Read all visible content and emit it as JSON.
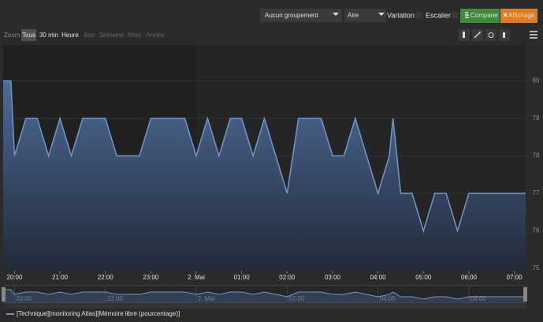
{
  "toolbar": {
    "grouping": "Aucun groupement",
    "chart_kind": "Aire",
    "variation": "Variation",
    "stairs": "Escalier",
    "compare": "Comparer",
    "display": "Affichage"
  },
  "zoom": {
    "label": "Zoom",
    "buttons": [
      "Tous",
      "30 min",
      "Heure",
      "Jour",
      "Semaine",
      "Mois",
      "Année"
    ]
  },
  "chart_data": {
    "type": "area",
    "x": [
      19.75,
      19.92,
      20.0,
      20.25,
      20.5,
      20.75,
      21.0,
      21.25,
      21.5,
      22.0,
      22.25,
      22.75,
      23.0,
      23.75,
      24.0,
      24.25,
      24.5,
      24.75,
      25.0,
      25.25,
      25.5,
      26.0,
      26.25,
      26.75,
      27.0,
      27.25,
      27.5,
      28.0,
      28.25,
      28.33,
      28.5,
      28.75,
      29.0,
      29.25,
      29.5,
      29.75,
      30.0,
      31.25
    ],
    "series": [
      {
        "name": "[Technique][monitoring Atlas][Mémoire libre (pourcentage)]",
        "color": "#7396c9",
        "values": [
          80,
          80,
          78,
          79,
          79,
          78,
          79,
          78,
          79,
          79,
          78,
          78,
          79,
          79,
          78,
          79,
          78,
          79,
          79,
          78,
          79,
          77,
          79,
          79,
          78,
          78,
          79,
          77,
          78,
          79,
          77,
          77,
          76,
          77,
          77,
          76,
          77,
          77
        ]
      }
    ],
    "xlim": [
      19.75,
      31.25
    ],
    "xticks": [
      {
        "value": 20,
        "label": "20:00"
      },
      {
        "value": 21,
        "label": "21:00"
      },
      {
        "value": 22,
        "label": "22:00"
      },
      {
        "value": 23,
        "label": "23:00"
      },
      {
        "value": 24,
        "label": "2. Mai"
      },
      {
        "value": 25,
        "label": "01:00"
      },
      {
        "value": 26,
        "label": "02:00"
      },
      {
        "value": 27,
        "label": "03:00"
      },
      {
        "value": 28,
        "label": "04:00"
      },
      {
        "value": 29,
        "label": "05:00"
      },
      {
        "value": 30,
        "label": "06:00"
      },
      {
        "value": 31,
        "label": "07:00"
      }
    ],
    "navigator_xticks": [
      {
        "value": 20,
        "label": "20:00"
      },
      {
        "value": 22,
        "label": "22:00"
      },
      {
        "value": 24,
        "label": "2. Mai"
      },
      {
        "value": 26,
        "label": "02:00"
      },
      {
        "value": 28,
        "label": "04:00"
      },
      {
        "value": 30,
        "label": "06:00"
      }
    ],
    "ylim": [
      75,
      81
    ],
    "yticks": [
      75,
      76,
      77,
      78,
      79,
      80
    ],
    "grid": true
  }
}
